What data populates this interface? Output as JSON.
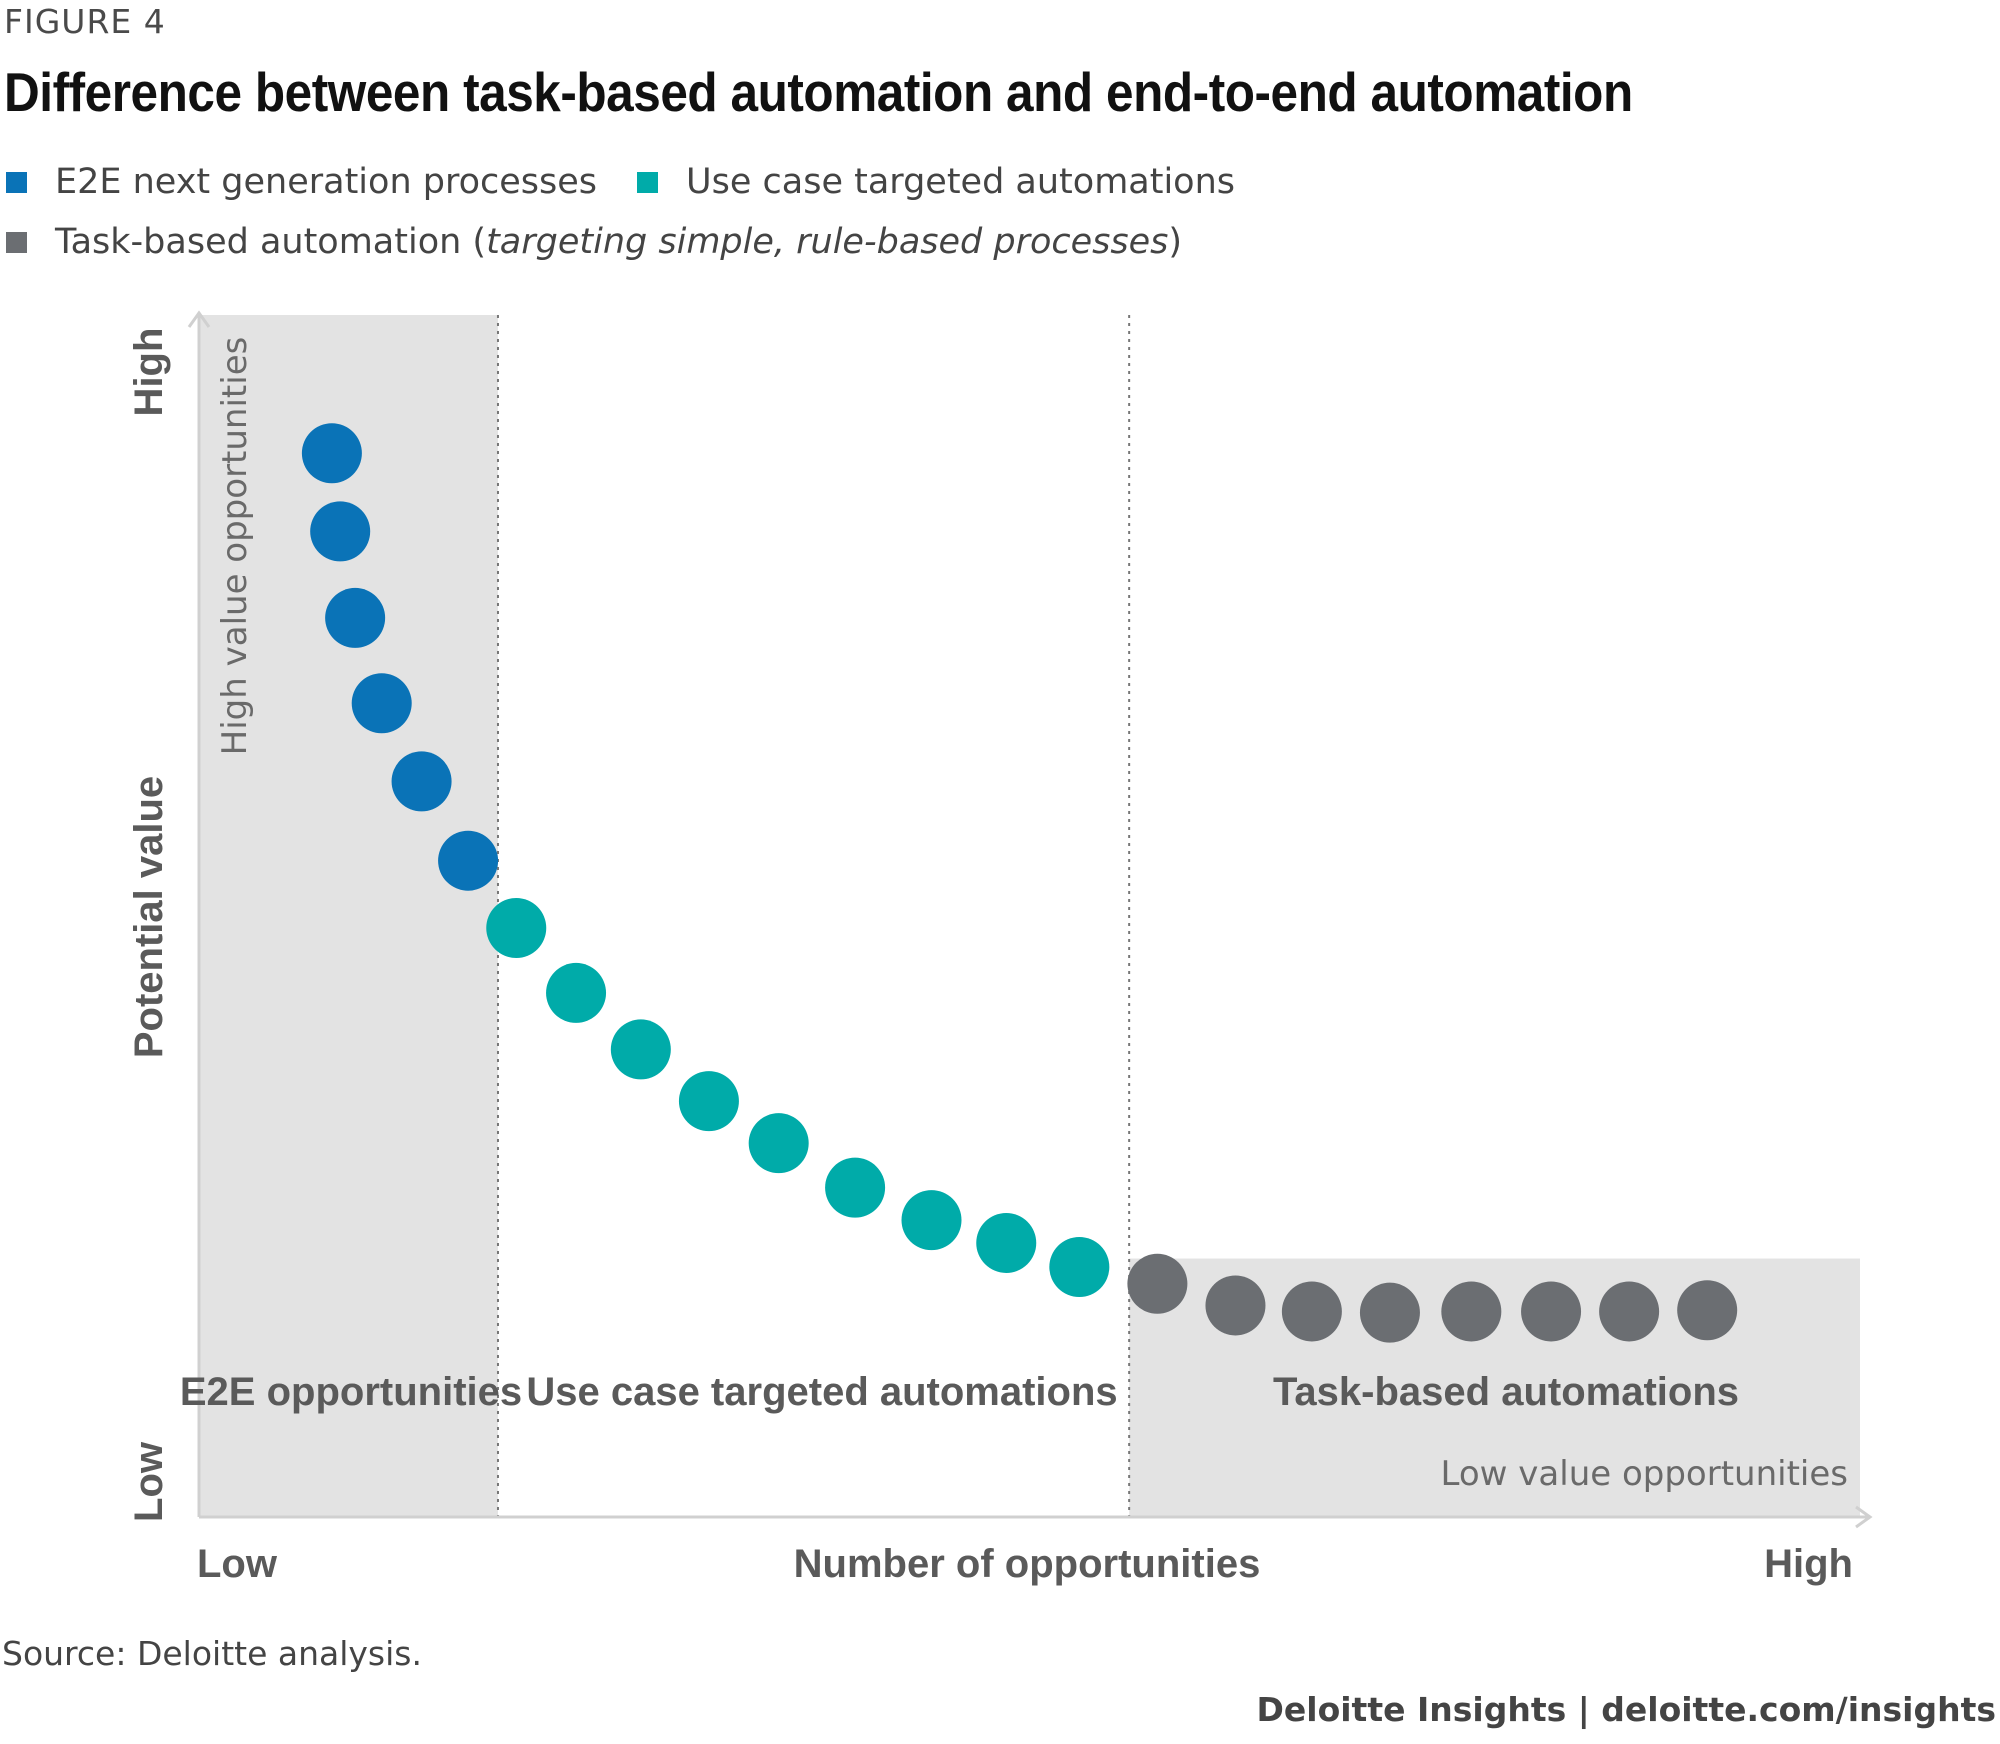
{
  "figure_label": "FIGURE 4",
  "title": "Difference between task-based automation and end-to-end automation",
  "legend": {
    "items": [
      {
        "label": "E2E next generation processes",
        "color": "#0a73b7",
        "note": ""
      },
      {
        "label": "Use case targeted automations",
        "color": "#00aba9",
        "note": ""
      },
      {
        "label": "Task-based automation (",
        "color": "#6b6e72",
        "note": "targeting simple, rule-based processes",
        "suffix": ")"
      }
    ]
  },
  "source": "Source: Deloitte analysis.",
  "brand": "Deloitte Insights | deloitte.com/insights",
  "chart_data": {
    "type": "scatter",
    "xlabel": "Number of opportunities",
    "ylabel": "Potential value",
    "x_tick_labels": {
      "low": "Low",
      "high": "High"
    },
    "y_tick_labels": {
      "low": "Low",
      "high": "High"
    },
    "xlim": [
      0,
      100
    ],
    "ylim": [
      0,
      100
    ],
    "zones": [
      {
        "label": "E2E opportunities",
        "x_range": [
          0,
          18
        ],
        "shaded": true,
        "note": "High value opportunities"
      },
      {
        "label": "Use case targeted automations",
        "x_range": [
          18,
          56
        ],
        "shaded": false,
        "note": ""
      },
      {
        "label": "Task-based automations",
        "x_range": [
          56,
          100
        ],
        "shaded": true,
        "note": "Low value opportunities"
      }
    ],
    "series": [
      {
        "name": "E2E next generation processes",
        "color": "#0a73b7",
        "points": [
          [
            8.0,
            88.5
          ],
          [
            8.5,
            82.0
          ],
          [
            9.4,
            74.8
          ],
          [
            11.0,
            67.7
          ],
          [
            13.4,
            61.2
          ],
          [
            16.2,
            54.6
          ]
        ]
      },
      {
        "name": "Use case targeted automations",
        "color": "#00aba9",
        "points": [
          [
            19.1,
            49.0
          ],
          [
            22.7,
            43.6
          ],
          [
            26.6,
            38.9
          ],
          [
            30.7,
            34.6
          ],
          [
            34.9,
            31.1
          ],
          [
            39.5,
            27.4
          ],
          [
            44.1,
            24.7
          ],
          [
            48.6,
            22.8
          ],
          [
            53.0,
            20.8
          ]
        ]
      },
      {
        "name": "Task-based automation",
        "color": "#6b6e72",
        "points": [
          [
            57.7,
            19.4
          ],
          [
            62.4,
            17.6
          ],
          [
            67.0,
            17.1
          ],
          [
            71.7,
            17.0
          ],
          [
            76.6,
            17.1
          ],
          [
            81.4,
            17.1
          ],
          [
            86.1,
            17.1
          ],
          [
            90.8,
            17.2
          ]
        ]
      }
    ]
  }
}
